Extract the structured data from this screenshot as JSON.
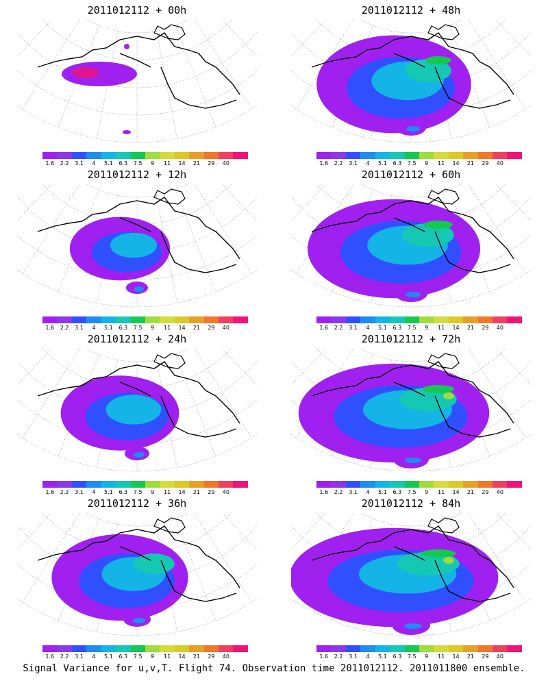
{
  "colors": [
    "#a020f0",
    "#8c38e8",
    "#3050ff",
    "#1e8cf0",
    "#14b4e6",
    "#14c8b4",
    "#14c850",
    "#a0dc3c",
    "#d2dc3c",
    "#dcc828",
    "#e6a028",
    "#f07828",
    "#f04060",
    "#f01478"
  ],
  "colorbar_labels": [
    "1.6",
    "2.2",
    "3.1",
    "4",
    "5.1",
    "6.3",
    "7.5",
    "9",
    "11",
    "14",
    "21",
    "29",
    "40"
  ],
  "panels": [
    {
      "title": "2011012112 + 00h",
      "level": 0
    },
    {
      "title": "2011012112 + 48h",
      "level": 4
    },
    {
      "title": "2011012112 + 12h",
      "level": 1
    },
    {
      "title": "2011012112 + 60h",
      "level": 5
    },
    {
      "title": "2011012112 + 24h",
      "level": 2
    },
    {
      "title": "2011012112 + 72h",
      "level": 6
    },
    {
      "title": "2011012112 + 36h",
      "level": 3
    },
    {
      "title": "2011012112 + 84h",
      "level": 7
    }
  ],
  "footer": "Signal Variance for u,v,T. Flight 74. Observation time 2011012112. 2011011800 ensemble."
}
